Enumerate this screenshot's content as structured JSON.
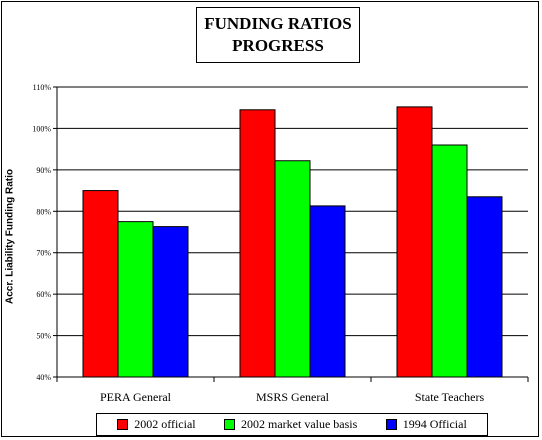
{
  "chart_data": {
    "type": "bar",
    "title_lines": [
      "FUNDING RATIOS",
      "PROGRESS"
    ],
    "ylabel": "Accr. Liability Funding Ratio",
    "xlabel": "",
    "categories": [
      "PERA General",
      "MSRS General",
      "State Teachers"
    ],
    "series": [
      {
        "name": "2002 official",
        "color": "#ff0000",
        "values": [
          85,
          104.5,
          105.2
        ]
      },
      {
        "name": "2002 market value basis",
        "color": "#00ff00",
        "values": [
          77.5,
          92.2,
          96
        ]
      },
      {
        "name": "1994 Official",
        "color": "#0000ff",
        "values": [
          76.3,
          81.3,
          83.5
        ]
      }
    ],
    "ylim": [
      40,
      110
    ],
    "yticks": [
      40,
      50,
      60,
      70,
      80,
      90,
      100,
      110
    ],
    "ytick_labels": [
      "40%",
      "50%",
      "60%",
      "70%",
      "80%",
      "90%",
      "100%",
      "110%"
    ],
    "grid": true,
    "legend_position": "bottom"
  }
}
